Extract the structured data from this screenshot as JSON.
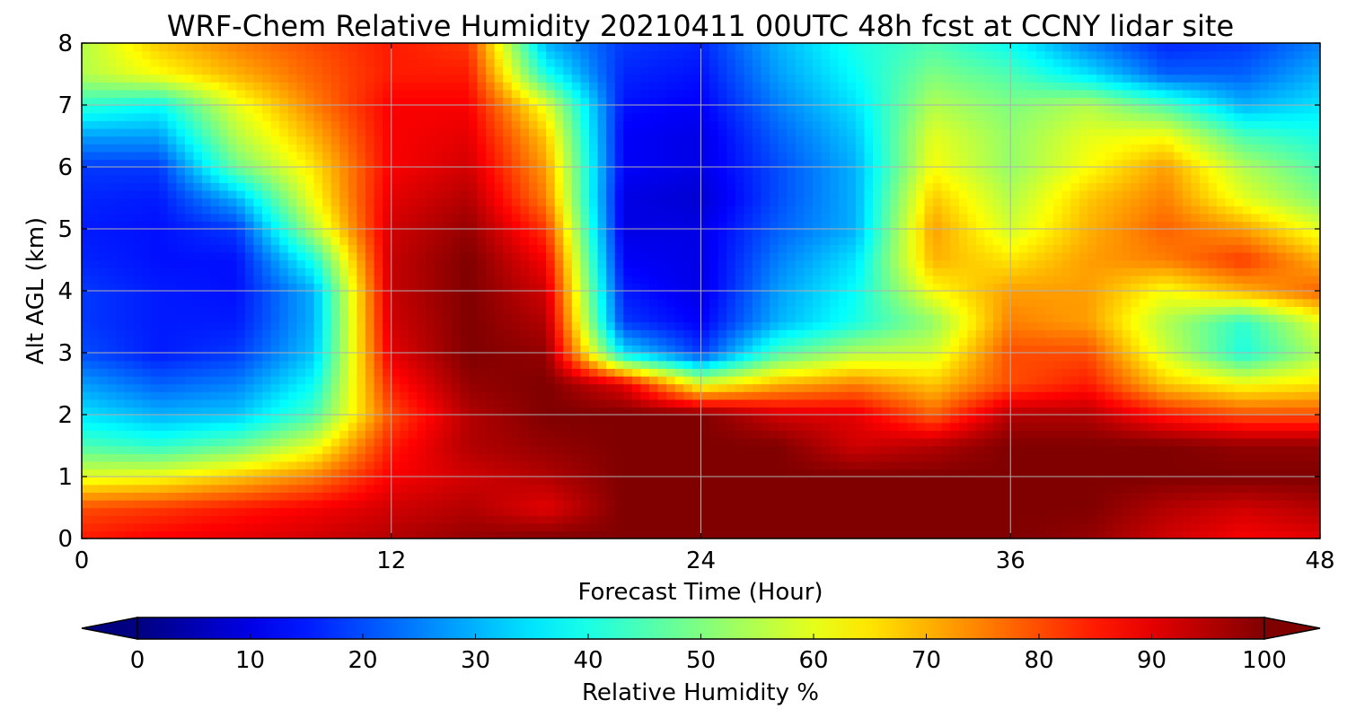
{
  "chart_data": {
    "type": "heatmap",
    "title": "WRF-Chem Relative Humidity 20210411 00UTC 48h fcst at CCNY lidar site",
    "xlabel": "Forecast Time (Hour)",
    "ylabel": "Alt AGL (km)",
    "xlim": [
      0,
      48
    ],
    "ylim": [
      0,
      8
    ],
    "x_ticks": [
      "0",
      "12",
      "24",
      "36",
      "48"
    ],
    "y_ticks": [
      "0",
      "1",
      "2",
      "3",
      "4",
      "5",
      "6",
      "7",
      "8"
    ],
    "grid": true,
    "colorbar": {
      "label": "Relative Humidity %",
      "ticks": [
        "0",
        "10",
        "20",
        "30",
        "40",
        "50",
        "60",
        "70",
        "80",
        "90",
        "100"
      ],
      "range": [
        0,
        100
      ],
      "colormap": "jet",
      "extend": "both"
    },
    "x": [
      0,
      3,
      6,
      9,
      12,
      15,
      18,
      21,
      24,
      27,
      30,
      33,
      36,
      39,
      42,
      45,
      48
    ],
    "y": [
      0,
      0.5,
      1,
      1.5,
      2,
      2.5,
      3,
      3.5,
      4,
      4.5,
      5,
      5.5,
      6,
      6.5,
      7,
      7.5,
      8
    ],
    "z": [
      [
        85,
        88,
        90,
        92,
        95,
        98,
        100,
        100,
        100,
        100,
        100,
        100,
        100,
        98,
        92,
        88,
        90
      ],
      [
        80,
        82,
        85,
        88,
        92,
        95,
        90,
        100,
        100,
        100,
        100,
        100,
        100,
        100,
        95,
        92,
        95
      ],
      [
        60,
        62,
        68,
        75,
        88,
        92,
        95,
        100,
        100,
        100,
        100,
        100,
        100,
        100,
        100,
        100,
        100
      ],
      [
        45,
        42,
        48,
        60,
        85,
        95,
        98,
        100,
        100,
        100,
        92,
        95,
        100,
        100,
        100,
        98,
        98
      ],
      [
        35,
        30,
        32,
        45,
        80,
        95,
        100,
        100,
        100,
        92,
        90,
        78,
        95,
        95,
        85,
        80,
        80
      ],
      [
        28,
        22,
        25,
        38,
        85,
        98,
        100,
        90,
        60,
        70,
        75,
        68,
        80,
        85,
        68,
        62,
        65
      ],
      [
        20,
        15,
        18,
        32,
        90,
        100,
        98,
        35,
        18,
        45,
        55,
        58,
        80,
        80,
        58,
        40,
        55
      ],
      [
        18,
        15,
        15,
        30,
        92,
        100,
        95,
        18,
        12,
        30,
        40,
        52,
        75,
        72,
        55,
        42,
        60
      ],
      [
        18,
        15,
        14,
        30,
        93,
        100,
        92,
        15,
        10,
        28,
        38,
        62,
        72,
        72,
        62,
        70,
        78
      ],
      [
        16,
        14,
        14,
        40,
        93,
        100,
        88,
        12,
        10,
        25,
        35,
        70,
        65,
        72,
        75,
        82,
        70
      ],
      [
        15,
        14,
        18,
        55,
        92,
        98,
        82,
        10,
        10,
        22,
        30,
        72,
        58,
        70,
        78,
        72,
        60
      ],
      [
        16,
        15,
        30,
        62,
        90,
        95,
        75,
        10,
        8,
        20,
        30,
        68,
        55,
        68,
        75,
        60,
        50
      ],
      [
        18,
        18,
        48,
        65,
        88,
        92,
        72,
        12,
        10,
        20,
        30,
        62,
        52,
        62,
        72,
        55,
        45
      ],
      [
        28,
        28,
        55,
        70,
        88,
        90,
        68,
        12,
        10,
        22,
        32,
        60,
        52,
        60,
        62,
        45,
        40
      ],
      [
        42,
        38,
        60,
        75,
        88,
        88,
        60,
        14,
        12,
        25,
        35,
        55,
        50,
        55,
        45,
        30,
        35
      ],
      [
        55,
        62,
        70,
        78,
        85,
        85,
        40,
        16,
        14,
        28,
        38,
        50,
        45,
        35,
        22,
        22,
        30
      ],
      [
        55,
        68,
        75,
        80,
        85,
        82,
        30,
        18,
        16,
        30,
        40,
        45,
        38,
        25,
        16,
        18,
        25
      ]
    ]
  }
}
